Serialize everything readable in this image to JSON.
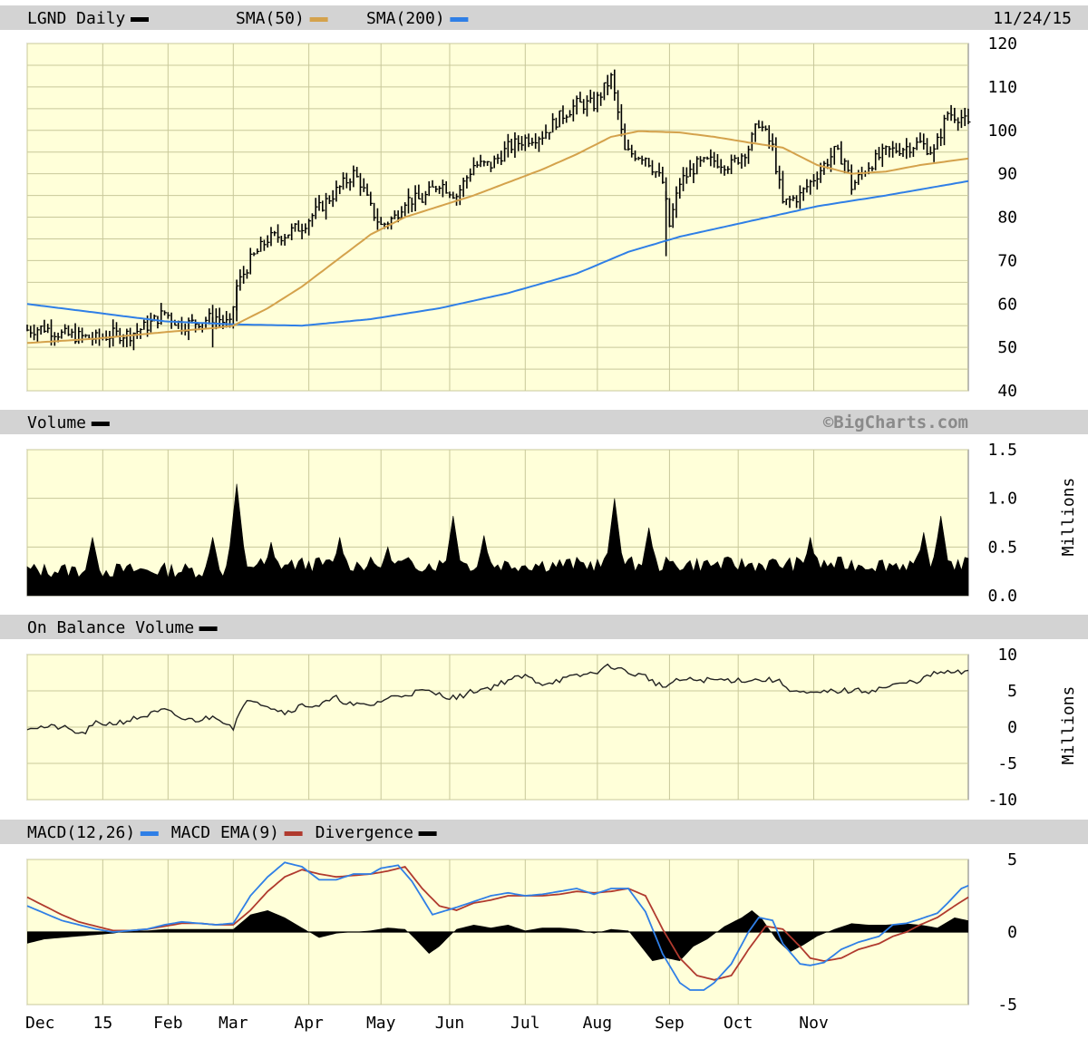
{
  "chart_data": [
    {
      "type": "line",
      "id": "price",
      "title": "LGND Daily",
      "date": "11/24/15",
      "legend": [
        {
          "name": "LGND Daily",
          "color": "#000000"
        },
        {
          "name": "SMA(50)",
          "color": "#d4a24c"
        },
        {
          "name": "SMA(200)",
          "color": "#2f7fe6"
        }
      ],
      "ylim": [
        40,
        120
      ],
      "yticks": [
        "40",
        "50",
        "60",
        "70",
        "80",
        "90",
        "100",
        "110",
        "120"
      ],
      "price_anchors": [
        [
          0,
          54
        ],
        [
          5,
          54.5
        ],
        [
          10,
          53
        ],
        [
          15,
          52.5
        ],
        [
          20,
          52
        ],
        [
          25,
          53
        ],
        [
          30,
          53
        ],
        [
          35,
          55
        ],
        [
          40,
          58
        ],
        [
          45,
          55
        ],
        [
          50,
          56
        ],
        [
          55,
          57
        ],
        [
          59,
          55
        ],
        [
          61,
          64
        ],
        [
          65,
          70
        ],
        [
          70,
          75
        ],
        [
          75,
          76
        ],
        [
          80,
          78
        ],
        [
          85,
          82
        ],
        [
          90,
          86
        ],
        [
          95,
          90
        ],
        [
          97,
          88
        ],
        [
          100,
          82
        ],
        [
          103,
          78
        ],
        [
          107,
          80
        ],
        [
          110,
          84
        ],
        [
          115,
          84
        ],
        [
          120,
          88
        ],
        [
          125,
          85
        ],
        [
          130,
          92
        ],
        [
          135,
          92
        ],
        [
          140,
          96
        ],
        [
          145,
          98
        ],
        [
          150,
          99
        ],
        [
          155,
          103
        ],
        [
          160,
          106
        ],
        [
          165,
          106
        ],
        [
          170,
          112
        ],
        [
          172,
          104
        ],
        [
          174,
          95
        ],
        [
          180,
          94
        ],
        [
          185,
          88
        ],
        [
          187,
          78
        ],
        [
          190,
          88
        ],
        [
          195,
          92
        ],
        [
          200,
          93
        ],
        [
          205,
          92
        ],
        [
          210,
          96
        ],
        [
          213,
          102
        ],
        [
          217,
          96
        ],
        [
          220,
          83
        ],
        [
          225,
          85
        ],
        [
          230,
          90
        ],
        [
          235,
          95
        ],
        [
          238,
          93
        ],
        [
          240,
          87
        ],
        [
          245,
          92
        ],
        [
          250,
          95
        ],
        [
          255,
          96
        ],
        [
          260,
          97
        ],
        [
          264,
          95
        ],
        [
          268,
          104
        ],
        [
          272,
          103
        ],
        [
          274,
          101
        ]
      ],
      "sma50_anchors": [
        [
          0,
          51
        ],
        [
          20,
          52
        ],
        [
          40,
          53.5
        ],
        [
          55,
          54.5
        ],
        [
          60,
          55
        ],
        [
          70,
          59
        ],
        [
          80,
          64
        ],
        [
          90,
          70
        ],
        [
          100,
          76
        ],
        [
          110,
          80
        ],
        [
          120,
          82.5
        ],
        [
          130,
          85
        ],
        [
          140,
          88
        ],
        [
          150,
          91
        ],
        [
          160,
          94.5
        ],
        [
          170,
          98.5
        ],
        [
          178,
          99.8
        ],
        [
          190,
          99.5
        ],
        [
          200,
          98.5
        ],
        [
          210,
          97.2
        ],
        [
          220,
          96
        ],
        [
          230,
          92
        ],
        [
          240,
          90
        ],
        [
          250,
          90.5
        ],
        [
          260,
          92
        ],
        [
          274,
          93.5
        ]
      ],
      "sma200_anchors": [
        [
          0,
          60
        ],
        [
          20,
          58
        ],
        [
          40,
          56
        ],
        [
          60,
          55.3
        ],
        [
          80,
          55
        ],
        [
          100,
          56.5
        ],
        [
          120,
          59
        ],
        [
          140,
          62.5
        ],
        [
          160,
          67
        ],
        [
          175,
          72
        ],
        [
          190,
          75.5
        ],
        [
          210,
          79
        ],
        [
          230,
          82.5
        ],
        [
          250,
          85
        ],
        [
          274,
          88.3
        ]
      ]
    },
    {
      "type": "area",
      "id": "volume",
      "title": "Volume",
      "watermark": "©BigCharts.com",
      "ylabel": "Millions",
      "ylim": [
        0,
        1.5
      ],
      "yticks": [
        "0.0",
        "0.5",
        "1.0",
        "1.5"
      ],
      "spikes": [
        [
          19,
          0.6
        ],
        [
          54,
          0.6
        ],
        [
          61,
          1.15
        ],
        [
          71,
          0.55
        ],
        [
          91,
          0.6
        ],
        [
          105,
          0.5
        ],
        [
          124,
          0.82
        ],
        [
          133,
          0.62
        ],
        [
          171,
          1.0
        ],
        [
          181,
          0.7
        ],
        [
          228,
          0.6
        ],
        [
          261,
          0.65
        ],
        [
          266,
          0.82
        ]
      ]
    },
    {
      "type": "line",
      "id": "obv",
      "title": "On Balance Volume",
      "ylabel": "Millions",
      "ylim": [
        -10,
        10
      ],
      "yticks": [
        "-10",
        "-5",
        "0",
        "5",
        "10"
      ],
      "anchors": [
        [
          0,
          0
        ],
        [
          10,
          0
        ],
        [
          16,
          -1
        ],
        [
          20,
          0.5
        ],
        [
          25,
          0.5
        ],
        [
          30,
          1
        ],
        [
          40,
          2.3
        ],
        [
          46,
          1
        ],
        [
          50,
          1
        ],
        [
          55,
          1.5
        ],
        [
          60,
          0
        ],
        [
          62,
          2
        ],
        [
          65,
          4
        ],
        [
          70,
          3
        ],
        [
          75,
          2
        ],
        [
          80,
          3
        ],
        [
          85,
          3
        ],
        [
          90,
          4
        ],
        [
          95,
          3
        ],
        [
          100,
          3
        ],
        [
          105,
          4
        ],
        [
          110,
          4.5
        ],
        [
          115,
          5
        ],
        [
          125,
          4
        ],
        [
          130,
          5
        ],
        [
          135,
          5.5
        ],
        [
          140,
          6.5
        ],
        [
          145,
          7
        ],
        [
          150,
          6
        ],
        [
          155,
          6.5
        ],
        [
          160,
          7
        ],
        [
          165,
          7.5
        ],
        [
          170,
          8.5
        ],
        [
          175,
          7.5
        ],
        [
          180,
          7
        ],
        [
          185,
          5.5
        ],
        [
          190,
          6.5
        ],
        [
          200,
          6.5
        ],
        [
          210,
          6.5
        ],
        [
          218,
          6.5
        ],
        [
          223,
          5
        ],
        [
          228,
          4.5
        ],
        [
          235,
          5
        ],
        [
          245,
          5
        ],
        [
          250,
          5.5
        ],
        [
          255,
          6
        ],
        [
          260,
          6.5
        ],
        [
          265,
          7.5
        ],
        [
          270,
          7.5
        ],
        [
          274,
          7.5
        ]
      ]
    },
    {
      "type": "line",
      "id": "macd",
      "title": "MACD",
      "legend": [
        {
          "name": "MACD(12,26)",
          "color": "#2f7fe6"
        },
        {
          "name": "MACD EMA(9)",
          "color": "#b03a2e"
        },
        {
          "name": "Divergence",
          "color": "#000000"
        }
      ],
      "ylim": [
        -5,
        5
      ],
      "yticks": [
        "-5",
        "0",
        "5"
      ],
      "macd_anchors": [
        [
          0,
          1.8
        ],
        [
          10,
          0.8
        ],
        [
          15,
          0.5
        ],
        [
          20,
          0.2
        ],
        [
          25,
          0
        ],
        [
          30,
          0.1
        ],
        [
          35,
          0.2
        ],
        [
          40,
          0.5
        ],
        [
          45,
          0.7
        ],
        [
          50,
          0.6
        ],
        [
          55,
          0.5
        ],
        [
          60,
          0.6
        ],
        [
          65,
          2.5
        ],
        [
          70,
          3.8
        ],
        [
          75,
          4.8
        ],
        [
          80,
          4.5
        ],
        [
          85,
          3.6
        ],
        [
          90,
          3.6
        ],
        [
          95,
          4
        ],
        [
          100,
          4
        ],
        [
          103,
          4.4
        ],
        [
          108,
          4.6
        ],
        [
          112,
          3.5
        ],
        [
          118,
          1.2
        ],
        [
          125,
          1.7
        ],
        [
          130,
          2.1
        ],
        [
          135,
          2.5
        ],
        [
          140,
          2.7
        ],
        [
          145,
          2.5
        ],
        [
          150,
          2.6
        ],
        [
          155,
          2.8
        ],
        [
          160,
          3
        ],
        [
          165,
          2.6
        ],
        [
          170,
          3
        ],
        [
          175,
          3
        ],
        [
          180,
          1.4
        ],
        [
          185,
          -1.5
        ],
        [
          190,
          -3.5
        ],
        [
          193,
          -4
        ],
        [
          197,
          -4
        ],
        [
          200,
          -3.5
        ],
        [
          205,
          -2.2
        ],
        [
          210,
          0
        ],
        [
          213,
          1
        ],
        [
          217,
          0.8
        ],
        [
          220,
          -0.8
        ],
        [
          225,
          -2.2
        ],
        [
          228,
          -2.3
        ],
        [
          232,
          -2.1
        ],
        [
          237,
          -1.2
        ],
        [
          242,
          -0.7
        ],
        [
          248,
          -0.3
        ],
        [
          252,
          0.5
        ],
        [
          256,
          0.6
        ],
        [
          260,
          0.9
        ],
        [
          265,
          1.3
        ],
        [
          268,
          2
        ],
        [
          272,
          3
        ],
        [
          274,
          3.2
        ]
      ],
      "ema_anchors": [
        [
          0,
          2.4
        ],
        [
          10,
          1.2
        ],
        [
          15,
          0.7
        ],
        [
          20,
          0.4
        ],
        [
          25,
          0.1
        ],
        [
          30,
          0.1
        ],
        [
          35,
          0.2
        ],
        [
          40,
          0.4
        ],
        [
          45,
          0.6
        ],
        [
          50,
          0.6
        ],
        [
          55,
          0.5
        ],
        [
          60,
          0.5
        ],
        [
          65,
          1.5
        ],
        [
          70,
          2.8
        ],
        [
          75,
          3.8
        ],
        [
          80,
          4.3
        ],
        [
          85,
          4
        ],
        [
          90,
          3.8
        ],
        [
          95,
          3.9
        ],
        [
          100,
          4
        ],
        [
          105,
          4.2
        ],
        [
          110,
          4.5
        ],
        [
          115,
          3
        ],
        [
          120,
          1.8
        ],
        [
          125,
          1.5
        ],
        [
          130,
          2
        ],
        [
          135,
          2.2
        ],
        [
          140,
          2.5
        ],
        [
          145,
          2.5
        ],
        [
          150,
          2.5
        ],
        [
          155,
          2.6
        ],
        [
          160,
          2.8
        ],
        [
          165,
          2.7
        ],
        [
          170,
          2.8
        ],
        [
          175,
          3
        ],
        [
          180,
          2.5
        ],
        [
          185,
          0.2
        ],
        [
          190,
          -1.8
        ],
        [
          195,
          -3
        ],
        [
          200,
          -3.3
        ],
        [
          205,
          -3
        ],
        [
          210,
          -1.2
        ],
        [
          215,
          0.4
        ],
        [
          220,
          0.2
        ],
        [
          225,
          -1
        ],
        [
          228,
          -1.8
        ],
        [
          232,
          -2
        ],
        [
          237,
          -1.8
        ],
        [
          242,
          -1.2
        ],
        [
          248,
          -0.8
        ],
        [
          252,
          -0.3
        ],
        [
          256,
          0
        ],
        [
          260,
          0.5
        ],
        [
          265,
          1
        ],
        [
          270,
          1.8
        ],
        [
          274,
          2.4
        ]
      ],
      "div_anchors": [
        [
          0,
          -0.8
        ],
        [
          5,
          -0.5
        ],
        [
          10,
          -0.4
        ],
        [
          15,
          -0.3
        ],
        [
          20,
          -0.2
        ],
        [
          25,
          -0.1
        ],
        [
          30,
          0.1
        ],
        [
          35,
          0.1
        ],
        [
          40,
          0.2
        ],
        [
          45,
          0.2
        ],
        [
          50,
          0.2
        ],
        [
          55,
          0.2
        ],
        [
          60,
          0.2
        ],
        [
          65,
          1.2
        ],
        [
          70,
          1.5
        ],
        [
          75,
          1
        ],
        [
          80,
          0.3
        ],
        [
          85,
          -0.4
        ],
        [
          90,
          -0.1
        ],
        [
          95,
          0
        ],
        [
          100,
          0.1
        ],
        [
          105,
          0.3
        ],
        [
          110,
          0.2
        ],
        [
          113,
          -0.5
        ],
        [
          117,
          -1.5
        ],
        [
          120,
          -1
        ],
        [
          125,
          0.2
        ],
        [
          130,
          0.5
        ],
        [
          135,
          0.3
        ],
        [
          140,
          0.5
        ],
        [
          145,
          0.1
        ],
        [
          150,
          0.3
        ],
        [
          155,
          0.3
        ],
        [
          160,
          0.2
        ],
        [
          165,
          -0.1
        ],
        [
          170,
          0.2
        ],
        [
          175,
          0.1
        ],
        [
          178,
          -0.8
        ],
        [
          182,
          -2
        ],
        [
          186,
          -1.8
        ],
        [
          190,
          -2
        ],
        [
          194,
          -1
        ],
        [
          198,
          -0.5
        ],
        [
          203,
          0.4
        ],
        [
          208,
          1
        ],
        [
          211,
          1.5
        ],
        [
          214,
          0.9
        ],
        [
          218,
          -0.5
        ],
        [
          222,
          -1.4
        ],
        [
          226,
          -0.9
        ],
        [
          230,
          -0.3
        ],
        [
          235,
          0.2
        ],
        [
          240,
          0.6
        ],
        [
          245,
          0.5
        ],
        [
          250,
          0.5
        ],
        [
          255,
          0.6
        ],
        [
          260,
          0.5
        ],
        [
          265,
          0.3
        ],
        [
          270,
          1
        ],
        [
          274,
          0.8
        ]
      ]
    }
  ],
  "x_axis": {
    "labels": [
      {
        "text": "Dec",
        "day": 0
      },
      {
        "text": "15",
        "day": 22
      },
      {
        "text": "Feb",
        "day": 41
      },
      {
        "text": "Mar",
        "day": 60
      },
      {
        "text": "Apr",
        "day": 82
      },
      {
        "text": "May",
        "day": 103
      },
      {
        "text": "Jun",
        "day": 123
      },
      {
        "text": "Jul",
        "day": 145
      },
      {
        "text": "Aug",
        "day": 166
      },
      {
        "text": "Sep",
        "day": 187
      },
      {
        "text": "Oct",
        "day": 207
      },
      {
        "text": "Nov",
        "day": 229
      }
    ],
    "total_days": 274
  }
}
